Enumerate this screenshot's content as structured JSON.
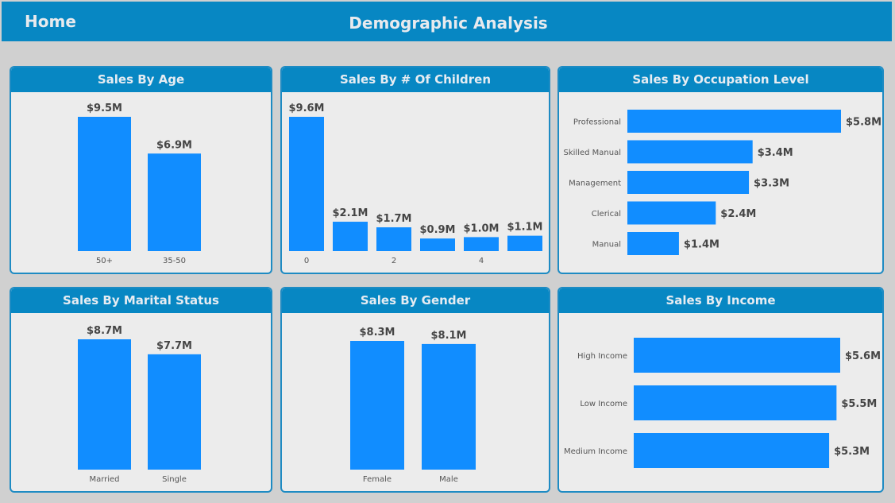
{
  "header": {
    "home_label": "Home",
    "title": "Demographic Analysis"
  },
  "colors": {
    "header": "#0787c3",
    "bar": "#118dff",
    "panel_bg": "#ececec",
    "page_bg": "#d0d0d0"
  },
  "charts": {
    "age": {
      "title": "Sales By Age",
      "chart_data": {
        "type": "bar",
        "categories": [
          "50+",
          "35-50"
        ],
        "values": [
          9.5,
          6.9
        ],
        "labels": [
          "$9.5M",
          "$6.9M"
        ]
      }
    },
    "children": {
      "title": "Sales By # Of Children",
      "chart_data": {
        "type": "bar",
        "categories": [
          "0",
          "1",
          "2",
          "3",
          "4",
          "5"
        ],
        "tick_labels": [
          "0",
          "",
          "2",
          "",
          "4",
          ""
        ],
        "values": [
          9.6,
          2.1,
          1.7,
          0.9,
          1.0,
          1.1
        ],
        "labels": [
          "$9.6M",
          "$2.1M",
          "$1.7M",
          "$0.9M",
          "$1.0M",
          "$1.1M"
        ]
      }
    },
    "occupation": {
      "title": "Sales By Occupation Level",
      "chart_data": {
        "type": "bar",
        "orientation": "horizontal",
        "categories": [
          "Professional",
          "Skilled Manual",
          "Management",
          "Clerical",
          "Manual"
        ],
        "values": [
          5.8,
          3.4,
          3.3,
          2.4,
          1.4
        ],
        "labels": [
          "$5.8M",
          "$3.4M",
          "$3.3M",
          "$2.4M",
          "$1.4M"
        ]
      }
    },
    "marital": {
      "title": "Sales By Marital Status",
      "chart_data": {
        "type": "bar",
        "categories": [
          "Married",
          "Single"
        ],
        "values": [
          8.7,
          7.7
        ],
        "labels": [
          "$8.7M",
          "$7.7M"
        ]
      }
    },
    "gender": {
      "title": "Sales By Gender",
      "chart_data": {
        "type": "bar",
        "categories": [
          "Female",
          "Male"
        ],
        "values": [
          8.3,
          8.1
        ],
        "labels": [
          "$8.3M",
          "$8.1M"
        ]
      }
    },
    "income": {
      "title": "Sales By Income",
      "chart_data": {
        "type": "bar",
        "orientation": "horizontal",
        "categories": [
          "High Income",
          "Low Income",
          "Medium Income"
        ],
        "values": [
          5.6,
          5.5,
          5.3
        ],
        "labels": [
          "$5.6M",
          "$5.5M",
          "$5.3M"
        ]
      }
    }
  }
}
